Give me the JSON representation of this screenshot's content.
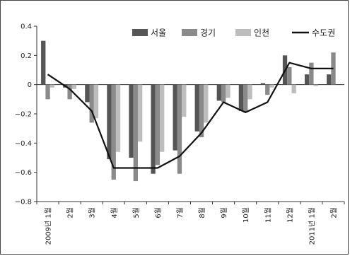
{
  "chart_data": {
    "type": "bar",
    "categories": [
      "2009년 1월",
      "2월",
      "3월",
      "4월",
      "5월",
      "6월",
      "7월",
      "8월",
      "9월",
      "10월",
      "11월",
      "12월",
      "2011년 1월",
      "2월"
    ],
    "ylim": [
      -0.8,
      0.4
    ],
    "yticks": [
      0.4,
      0.2,
      0,
      -0.2,
      -0.4,
      -0.6,
      -0.8
    ],
    "ytick_labels": [
      "0.4",
      "0.2",
      "0",
      "−0.2",
      "−0.4",
      "−0.6",
      "−0.8"
    ],
    "legend_position": "top-right",
    "grid": false,
    "series": [
      {
        "name": "서울",
        "kind": "bar",
        "color": "#555555",
        "values": [
          0.3,
          -0.02,
          -0.12,
          -0.51,
          -0.5,
          -0.61,
          -0.45,
          -0.32,
          -0.11,
          -0.18,
          0.01,
          0.2,
          0.07,
          0.07
        ]
      },
      {
        "name": "경기",
        "kind": "bar",
        "color": "#8a8a8a",
        "values": [
          -0.1,
          -0.1,
          -0.26,
          -0.65,
          -0.66,
          -0.55,
          -0.61,
          -0.36,
          -0.12,
          -0.19,
          -0.07,
          0.12,
          0.15,
          0.22
        ]
      },
      {
        "name": "인천",
        "kind": "bar",
        "color": "#bdbdbd",
        "values": [
          -0.02,
          -0.03,
          -0.23,
          -0.46,
          -0.39,
          -0.46,
          -0.22,
          -0.26,
          -0.09,
          -0.1,
          -0.02,
          -0.06,
          -0.01,
          0.0
        ]
      },
      {
        "name": "수도권",
        "kind": "line",
        "color": "#111111",
        "values": [
          0.07,
          -0.03,
          -0.18,
          -0.57,
          -0.57,
          -0.57,
          -0.49,
          -0.33,
          -0.12,
          -0.19,
          -0.12,
          0.15,
          0.11,
          0.11
        ]
      }
    ]
  }
}
